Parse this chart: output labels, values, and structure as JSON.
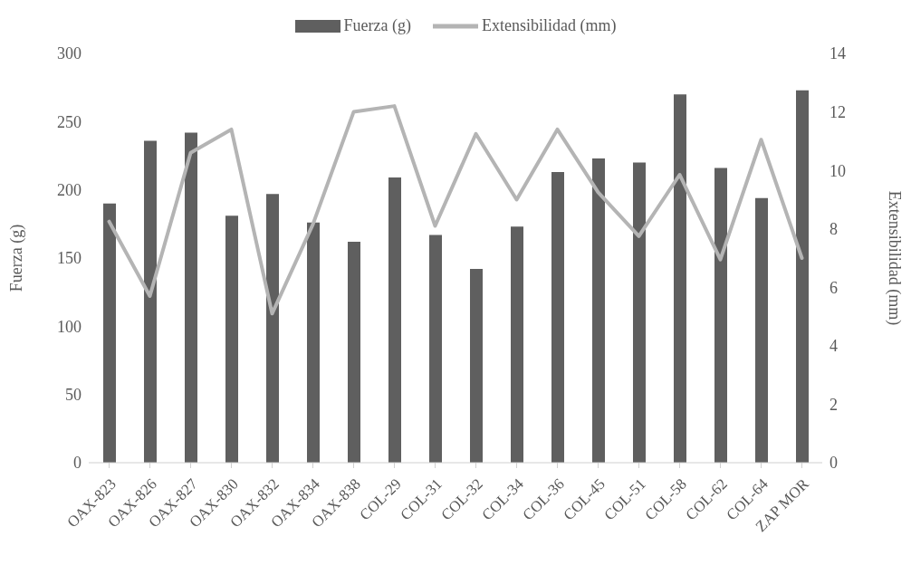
{
  "chart_data": {
    "type": "bar",
    "ylabel": "Fuerza (g)",
    "y2label": "Extensibilidad (mm)",
    "categories": [
      "OAX-823",
      "OAX-826",
      "OAX-827",
      "OAX-830",
      "OAX-832",
      "OAX-834",
      "OAX-838",
      "COL-29",
      "COL-31",
      "COL-32",
      "COL-34",
      "COL-36",
      "COL-45",
      "COL-51",
      "COL-58",
      "COL-62",
      "COL-64",
      "ZAP MOR"
    ],
    "series": [
      {
        "name": "Fuerza (g)",
        "color": "#5f5f5f",
        "values": [
          190,
          236,
          242,
          181,
          197,
          176,
          162,
          209,
          167,
          142,
          173,
          213,
          223,
          220,
          270,
          216,
          194,
          273
        ]
      },
      {
        "name": "Extensibilidad (mm)",
        "type": "line",
        "axis": "y2",
        "color": "#b4b4b4",
        "marker": "none",
        "values": [
          8.25,
          5.7,
          10.6,
          11.4,
          5.1,
          8.15,
          12.0,
          12.2,
          8.1,
          11.25,
          9.0,
          11.4,
          9.25,
          7.75,
          9.85,
          6.95,
          11.05,
          7.0
        ]
      }
    ],
    "ylim": [
      0,
      300
    ],
    "yticks": [
      0,
      50,
      100,
      150,
      200,
      250,
      300
    ],
    "y2lim": [
      0,
      14
    ],
    "y2ticks": [
      0,
      2,
      4,
      6,
      8,
      10,
      12,
      14
    ],
    "grid": false,
    "legend": "top"
  }
}
